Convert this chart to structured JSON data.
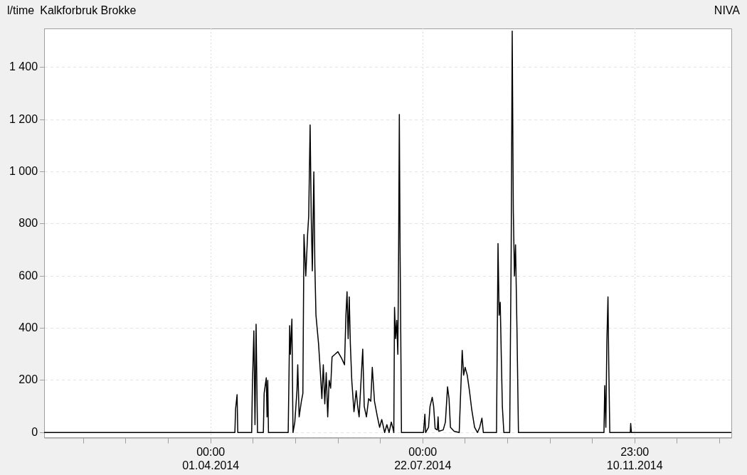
{
  "chart_data": {
    "type": "line",
    "title": "Kalkforbruk Brokke",
    "ylabel": "l/time",
    "annotations": [
      "NIVA"
    ],
    "xlim": [
      "2014-01-03T00:00",
      "2015-01-01T00:00"
    ],
    "xticks": [
      {
        "value": "2014-01-23T19:12",
        "label": null
      },
      {
        "value": "2014-02-15T04:48",
        "label": null
      },
      {
        "value": "2014-03-09T14:24",
        "label": null
      },
      {
        "value": "2014-04-01T00:00",
        "label": "00:00 01.04.2014"
      },
      {
        "value": "2014-04-23T09:36",
        "label": null
      },
      {
        "value": "2014-05-15T19:12",
        "label": null
      },
      {
        "value": "2014-06-07T04:48",
        "label": null
      },
      {
        "value": "2014-06-29T14:24",
        "label": null
      },
      {
        "value": "2014-07-22T00:00",
        "label": "00:00 22.07.2014"
      },
      {
        "value": "2014-08-13T09:36",
        "label": null
      },
      {
        "value": "2014-09-04T19:12",
        "label": null
      },
      {
        "value": "2014-09-27T04:48",
        "label": null
      },
      {
        "value": "2014-10-19T14:24",
        "label": null
      },
      {
        "value": "2014-11-10T23:00",
        "label": "23:00 10.11.2014"
      },
      {
        "value": "2014-12-03T08:36",
        "label": null
      },
      {
        "value": "2014-12-25T18:12",
        "label": null
      }
    ],
    "ylim": [
      -20,
      1550
    ],
    "yticks": [
      0,
      200,
      400,
      600,
      800,
      {
        "value": 1000,
        "label": "1 000"
      },
      {
        "value": 1200,
        "label": "1 200"
      },
      {
        "value": 1400,
        "label": "1 400"
      }
    ],
    "grid": true,
    "legend": false,
    "marker": "none",
    "line_style": "solid",
    "series": [
      {
        "color": "#000000",
        "x": [
          "2014-01-03T00:00",
          "2014-04-13T18:00",
          "2014-04-14T03:00",
          "2014-04-14T22:00",
          "2014-04-15T07:00",
          "2014-04-22T15:00",
          "2014-04-23T00:00",
          "2014-04-23T19:00",
          "2014-04-24T09:00",
          "2014-04-24T23:00",
          "2014-04-25T17:00",
          "2014-04-28T19:00",
          "2014-04-29T05:00",
          "2014-04-30T08:00",
          "2014-04-30T18:00",
          "2014-05-01T03:00",
          "2014-05-01T12:00",
          "2014-05-11T22:00",
          "2014-05-12T17:00",
          "2014-05-13T02:00",
          "2014-05-13T21:00",
          "2014-05-14T11:00",
          "2014-05-15T10:00",
          "2014-05-16T13:00",
          "2014-05-16T23:00",
          "2014-05-17T17:00",
          "2014-05-18T21:00",
          "2014-05-19T16:00",
          "2014-05-20T06:00",
          "2014-05-21T05:00",
          "2014-05-22T04:00",
          "2014-05-22T18:00",
          "2014-05-23T12:00",
          "2014-05-24T02:00",
          "2014-05-24T16:00",
          "2014-05-25T11:00",
          "2014-05-26T00:00",
          "2014-05-26T14:00",
          "2014-05-27T23:00",
          "2014-05-28T22:00",
          "2014-05-29T17:00",
          "2014-05-30T11:00",
          "2014-05-31T06:00",
          "2014-06-01T00:00",
          "2014-06-01T19:00",
          "2014-06-02T13:00",
          "2014-06-03T08:00",
          "2014-06-04T02:00",
          "2014-06-05T15:00",
          "2014-06-07T04:00",
          "2014-06-09T03:00",
          "2014-06-10T16:00",
          "2014-06-11T10:00",
          "2014-06-12T00:00",
          "2014-06-12T14:00",
          "2014-06-13T04:00",
          "2014-06-13T18:00",
          "2014-06-14T12:00",
          "2014-06-15T16:00",
          "2014-06-16T20:00",
          "2014-06-17T15:00",
          "2014-06-18T09:00",
          "2014-06-20T07:00",
          "2014-06-21T02:00",
          "2014-06-22T06:00",
          "2014-06-23T10:00",
          "2014-06-24T13:00",
          "2014-06-25T08:00",
          "2014-06-26T12:00",
          "2014-06-28T01:00",
          "2014-06-29T05:00",
          "2014-06-30T08:00",
          "2014-07-01T21:00",
          "2014-07-03T01:00",
          "2014-07-04T05:00",
          "2014-07-05T09:00",
          "2014-07-06T03:00",
          "2014-07-06T17:00",
          "2014-07-07T02:00",
          "2014-07-07T16:00",
          "2014-07-08T06:00",
          "2014-07-08T20:00",
          "2014-07-09T06:00",
          "2014-07-09T15:00",
          "2014-07-10T00:00",
          "2014-07-10T09:00",
          "2014-07-10T18:00",
          "2014-07-22T09:00",
          "2014-07-23T03:00",
          "2014-07-23T12:00",
          "2014-07-25T01:00",
          "2014-07-25T20:00",
          "2014-07-27T00:00",
          "2014-07-27T18:00",
          "2014-07-28T13:00",
          "2014-07-29T17:00",
          "2014-07-30T02:00",
          "2014-07-30T11:00",
          "2014-08-01T19:00",
          "2014-08-02T23:00",
          "2014-08-04T02:00",
          "2014-08-04T21:00",
          "2014-08-05T15:00",
          "2014-08-07T14:00",
          "2014-08-10T06:00",
          "2014-08-11T20:00",
          "2014-08-12T14:00",
          "2014-08-13T09:00",
          "2014-08-14T12:00",
          "2014-08-15T16:00",
          "2014-08-16T20:00",
          "2014-08-18T09:00",
          "2014-08-19T22:00",
          "2014-08-21T02:00",
          "2014-08-22T06:00",
          "2014-08-23T00:00",
          "2014-08-29T23:00",
          "2014-08-30T18:00",
          "2014-08-31T08:00",
          "2014-08-31T22:00",
          "2014-09-01T11:00",
          "2014-09-02T01:00",
          "2014-09-02T20:00",
          "2014-09-05T22:00",
          "2014-09-06T17:00",
          "2014-09-07T06:00",
          "2014-09-07T20:00",
          "2014-09-08T10:00",
          "2014-09-09T00:00",
          "2014-09-09T19:00",
          "2014-09-10T13:00",
          "2014-10-25T17:00",
          "2014-10-26T03:00",
          "2014-10-26T17:00",
          "2014-10-27T06:00",
          "2014-10-27T20:00",
          "2014-10-28T06:00",
          "2014-10-28T19:00",
          "2014-11-08T15:00",
          "2014-11-08T20:00",
          "2014-11-09T05:00",
          "2014-12-31T23:00"
        ],
        "values": [
          0,
          0,
          90,
          145,
          0,
          0,
          180,
          390,
          30,
          415,
          0,
          0,
          150,
          210,
          60,
          200,
          0,
          0,
          410,
          300,
          435,
          0,
          40,
          160,
          260,
          60,
          120,
          150,
          760,
          600,
          760,
          830,
          1180,
          830,
          620,
          1000,
          640,
          450,
          340,
          230,
          130,
          260,
          110,
          230,
          60,
          200,
          170,
          290,
          300,
          310,
          285,
          260,
          450,
          540,
          360,
          520,
          340,
          200,
          80,
          160,
          100,
          60,
          320,
          100,
          60,
          130,
          120,
          250,
          120,
          60,
          20,
          50,
          0,
          30,
          0,
          40,
          20,
          0,
          480,
          360,
          430,
          300,
          700,
          1220,
          720,
          380,
          0,
          0,
          70,
          0,
          20,
          100,
          135,
          100,
          15,
          10,
          60,
          5,
          10,
          40,
          175,
          130,
          20,
          5,
          0,
          315,
          220,
          250,
          220,
          160,
          90,
          20,
          0,
          20,
          55,
          0,
          0,
          725,
          450,
          500,
          300,
          100,
          0,
          0,
          700,
          1540,
          850,
          600,
          720,
          380,
          0,
          0,
          180,
          20,
          350,
          520,
          260,
          0,
          0,
          35,
          0,
          0
        ]
      }
    ]
  }
}
